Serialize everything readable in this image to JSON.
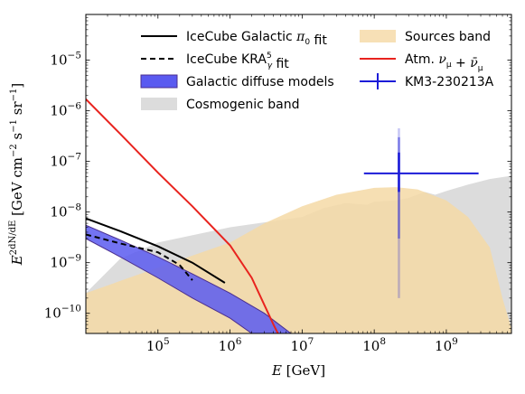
{
  "chart_data": {
    "type": "area",
    "xlabel_main": "E",
    "xlabel_unit": "[GeV]",
    "ylabel_prefix": "E",
    "ylabel_unit": "[GeV cm",
    "ylabel_unit_rest": "s",
    "ylabel_unit_tail": "sr",
    "xlog": true,
    "ylog": true,
    "xlim": [
      10000,
      8000000000
    ],
    "ylim": [
      4e-11,
      8e-05
    ],
    "x_ticks": [
      {
        "value": 100000,
        "base": "10",
        "exp": "5"
      },
      {
        "value": 1000000,
        "base": "10",
        "exp": "6"
      },
      {
        "value": 10000000,
        "base": "10",
        "exp": "7"
      },
      {
        "value": 100000000,
        "base": "10",
        "exp": "8"
      },
      {
        "value": 1000000000,
        "base": "10",
        "exp": "9"
      }
    ],
    "y_ticks": [
      {
        "value": 1e-10,
        "base": "10",
        "exp": "−10"
      },
      {
        "value": 1e-09,
        "base": "10",
        "exp": "−9"
      },
      {
        "value": 1e-08,
        "base": "10",
        "exp": "−8"
      },
      {
        "value": 1e-07,
        "base": "10",
        "exp": "−7"
      },
      {
        "value": 1e-06,
        "base": "10",
        "exp": "−6"
      },
      {
        "value": 1e-05,
        "base": "10",
        "exp": "−5"
      }
    ],
    "legend_position": "top",
    "series": [
      {
        "name": "Cosmogenic band",
        "kind": "band",
        "color": "#d0d0d0",
        "upper": [
          [
            10000,
            2.5e-10
          ],
          [
            30000,
            1.2e-09
          ],
          [
            100000,
            2.5e-09
          ],
          [
            1000000,
            5e-09
          ],
          [
            10000000,
            8e-09
          ],
          [
            20000000,
            1.2e-08
          ],
          [
            40000000,
            1.5e-08
          ],
          [
            80000000,
            1.4e-08
          ],
          [
            100000000,
            1.6e-08
          ],
          [
            200000000,
            1.7e-08
          ],
          [
            300000000,
            1.9e-08
          ],
          [
            500000000,
            2.5e-08
          ],
          [
            700000000,
            2.2e-08
          ],
          [
            1000000000,
            2.6e-08
          ],
          [
            2000000000,
            3.5e-08
          ],
          [
            4000000000,
            4.5e-08
          ],
          [
            8000000000,
            5.2e-08
          ]
        ],
        "lower": [
          [
            10000,
            4e-11
          ],
          [
            8000000000,
            4e-11
          ]
        ]
      },
      {
        "name": "Sources band",
        "kind": "band",
        "color": "#f5d9a6",
        "upper": [
          [
            10000,
            2.5e-10
          ],
          [
            100000,
            8e-10
          ],
          [
            1000000,
            2.5e-09
          ],
          [
            3000000,
            6e-09
          ],
          [
            10000000,
            1.3e-08
          ],
          [
            30000000,
            2.2e-08
          ],
          [
            100000000,
            3e-08
          ],
          [
            200000000,
            3.1e-08
          ],
          [
            400000000,
            2.8e-08
          ],
          [
            1000000000,
            1.7e-08
          ],
          [
            2000000000,
            8e-09
          ],
          [
            4000000000,
            2e-09
          ],
          [
            6000000000,
            2e-10
          ],
          [
            8000000000,
            5e-11
          ]
        ],
        "lower": [
          [
            10000,
            4e-11
          ],
          [
            8000000000,
            4e-11
          ]
        ]
      },
      {
        "name": "Galactic diffuse models",
        "kind": "band",
        "color": "#5a5af0",
        "upper": [
          [
            10000,
            5.5e-09
          ],
          [
            30000,
            2.8e-09
          ],
          [
            100000,
            1.3e-09
          ],
          [
            300000,
            6e-10
          ],
          [
            1000000,
            2.5e-10
          ],
          [
            3000000,
            1e-10
          ],
          [
            7000000,
            4e-11
          ]
        ],
        "lower": [
          [
            10000,
            3e-09
          ],
          [
            30000,
            1.3e-09
          ],
          [
            100000,
            5e-10
          ],
          [
            300000,
            2e-10
          ],
          [
            1000000,
            8e-11
          ],
          [
            2000000,
            4e-11
          ]
        ]
      },
      {
        "name": "IceCube Galactic π0 fit",
        "kind": "line",
        "color": "#000000",
        "dash": "",
        "points": [
          [
            10000,
            7.5e-09
          ],
          [
            30000,
            4.2e-09
          ],
          [
            100000,
            2.1e-09
          ],
          [
            300000,
            1e-09
          ],
          [
            850000,
            4e-10
          ]
        ]
      },
      {
        "name": "IceCube KRA5γ fit",
        "kind": "line",
        "color": "#000000",
        "dash": "6,4",
        "points": [
          [
            10000,
            3.6e-09
          ],
          [
            30000,
            2.4e-09
          ],
          [
            100000,
            1.6e-09
          ],
          [
            200000,
            9e-10
          ],
          [
            300000,
            4.5e-10
          ]
        ]
      },
      {
        "name": "Atm. νμ + ν̄μ",
        "kind": "line",
        "color": "#e8231e",
        "dash": "",
        "points": [
          [
            10000,
            1.7e-06
          ],
          [
            30000,
            3.5e-07
          ],
          [
            100000,
            6e-08
          ],
          [
            300000,
            1.3e-08
          ],
          [
            1000000,
            2.2e-09
          ],
          [
            2000000,
            5e-10
          ],
          [
            4000000,
            6e-11
          ],
          [
            5000000,
            3.2e-11
          ]
        ]
      }
    ],
    "point": {
      "name": "KM3-230213A",
      "color": "#1c1cd8",
      "x": 220000000,
      "y": 5.8e-08,
      "x_range": [
        72000000,
        2800000000
      ],
      "y_range_1sigma": [
        2.5e-08,
        1.5e-07
      ],
      "y_range_2sigma": [
        3e-09,
        3e-07
      ],
      "y_range_3sigma": [
        2e-10,
        4.5e-07
      ]
    }
  },
  "legend": {
    "left": [
      {
        "label": "IceCube Galactic ",
        "math": "π",
        "sub": "0",
        "tail": " fit",
        "kind": "line-solid"
      },
      {
        "label": "IceCube KRA",
        "sup": "5",
        "sub": "γ",
        "tail": " fit",
        "kind": "line-dashed"
      },
      {
        "label": "Galactic diffuse models",
        "kind": "patch-blue"
      },
      {
        "label": "Cosmogenic band",
        "kind": "patch-gray"
      }
    ],
    "right": [
      {
        "label": "Sources band",
        "kind": "patch-orange"
      },
      {
        "label": "Atm. ",
        "math": "ν",
        "sub": "μ",
        "tail": " + ",
        "math2": "ν̄",
        "sub2": "μ",
        "kind": "line-red"
      },
      {
        "label": "KM3-230213A",
        "kind": "errorbar"
      }
    ]
  }
}
